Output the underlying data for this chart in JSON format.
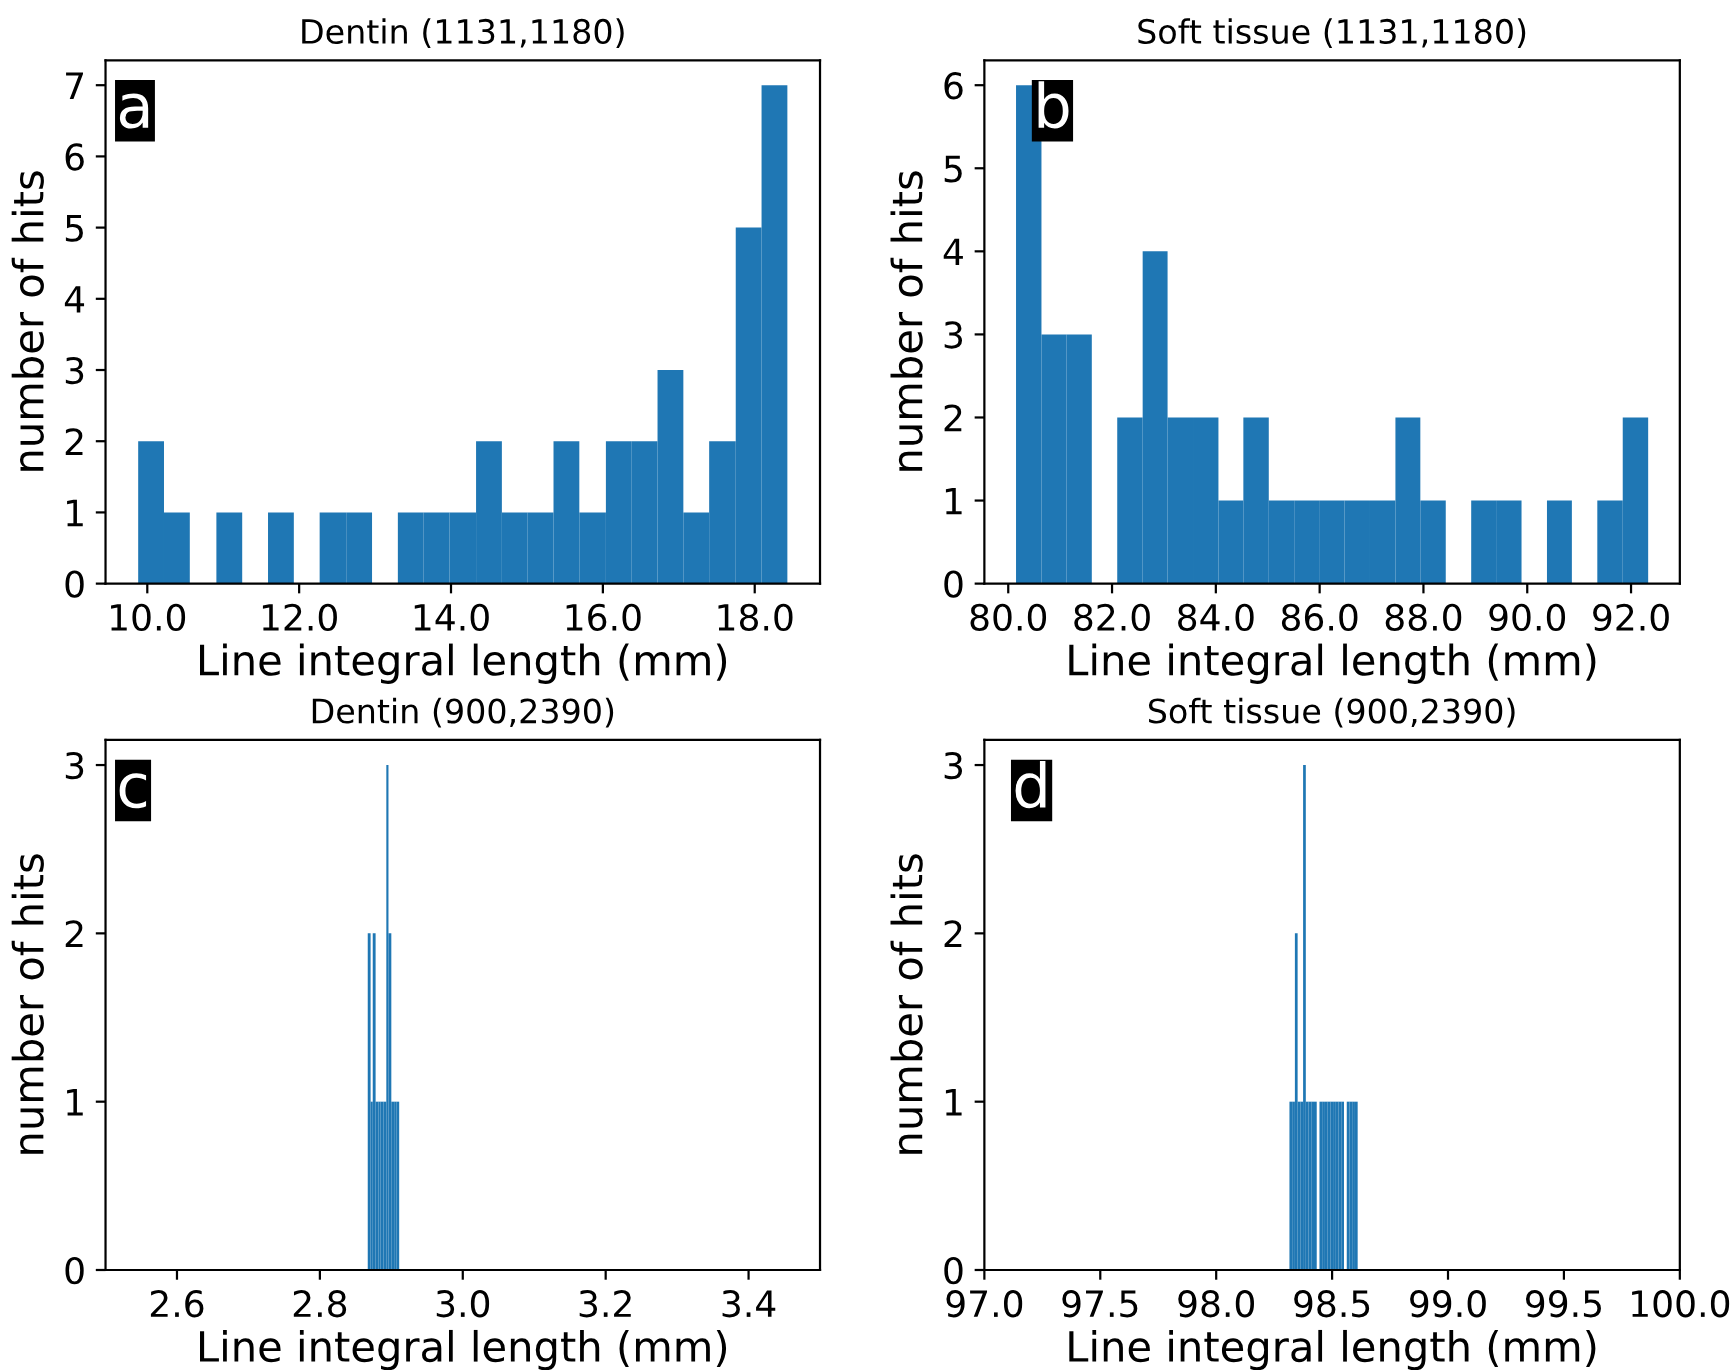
{
  "chart_data": [
    {
      "type": "histogram",
      "title": "Dentin (1131,1180)",
      "xlabel": "Line integral length (mm)",
      "ylabel": "number of hits",
      "color": "#1f77b4",
      "annotations": [
        "a"
      ],
      "bins": [
        9.88,
        10.22,
        10.56,
        10.91,
        11.25,
        11.59,
        11.93,
        12.27,
        12.62,
        12.96,
        13.3,
        13.64,
        13.98,
        14.33,
        14.67,
        15.01,
        15.35,
        15.69,
        16.04,
        16.38,
        16.72,
        17.06,
        17.4,
        17.75,
        18.09,
        18.43
      ],
      "values": [
        2,
        1,
        0,
        1,
        0,
        1,
        0,
        1,
        1,
        0,
        1,
        1,
        1,
        2,
        1,
        1,
        2,
        1,
        2,
        2,
        3,
        1,
        2,
        5,
        7
      ],
      "xlim": [
        9.45,
        18.86
      ],
      "xticks": [
        {
          "value": 10,
          "label": "10.0"
        },
        {
          "value": 12,
          "label": "12.0"
        },
        {
          "value": 14,
          "label": "14.0"
        },
        {
          "value": 16,
          "label": "16.0"
        },
        {
          "value": 18,
          "label": "18.0"
        }
      ],
      "ylim": [
        0,
        7.35
      ],
      "yticks": [
        0,
        1,
        2,
        3,
        4,
        5,
        6,
        7
      ],
      "grid": false
    },
    {
      "type": "histogram",
      "title": "Soft tissue (1131,1180)",
      "xlabel": "Line integral length (mm)",
      "ylabel": "number of hits",
      "color": "#1f77b4",
      "annotations": [
        "b"
      ],
      "bins": [
        80.15,
        80.64,
        81.12,
        81.61,
        82.1,
        82.59,
        83.07,
        83.56,
        84.05,
        84.53,
        85.02,
        85.51,
        85.99,
        86.48,
        86.97,
        87.46,
        87.94,
        88.43,
        88.92,
        89.4,
        89.89,
        90.38,
        90.86,
        91.35,
        91.84,
        92.33
      ],
      "values": [
        6,
        3,
        3,
        0,
        2,
        4,
        2,
        2,
        1,
        2,
        1,
        1,
        1,
        1,
        1,
        2,
        1,
        0,
        1,
        1,
        0,
        1,
        0,
        1,
        2
      ],
      "xlim": [
        79.54,
        92.94
      ],
      "xticks": [
        {
          "value": 80,
          "label": "80.0"
        },
        {
          "value": 82,
          "label": "82.0"
        },
        {
          "value": 84,
          "label": "84.0"
        },
        {
          "value": 86,
          "label": "86.0"
        },
        {
          "value": 88,
          "label": "88.0"
        },
        {
          "value": 90,
          "label": "90.0"
        },
        {
          "value": 92,
          "label": "92.0"
        }
      ],
      "ylim": [
        0,
        6.3
      ],
      "yticks": [
        0,
        1,
        2,
        3,
        4,
        5,
        6
      ],
      "grid": false
    },
    {
      "type": "histogram",
      "title": "Dentin (900,2390)",
      "xlabel": "Line integral length (mm)",
      "ylabel": "number of hits",
      "color": "#1f77b4",
      "annotations": [
        "c"
      ],
      "bins": [
        2.867,
        2.871,
        2.874,
        2.878,
        2.882,
        2.885,
        2.889,
        2.893,
        2.896,
        2.9,
        2.904,
        2.907,
        2.911
      ],
      "values": [
        2,
        1,
        2,
        1,
        1,
        1,
        1,
        3,
        2,
        1,
        1,
        1
      ],
      "xlim": [
        2.5,
        3.5
      ],
      "xticks": [
        {
          "value": 2.6,
          "label": "2.6"
        },
        {
          "value": 2.8,
          "label": "2.8"
        },
        {
          "value": 3.0,
          "label": "3.0"
        },
        {
          "value": 3.2,
          "label": "3.2"
        },
        {
          "value": 3.4,
          "label": "3.4"
        }
      ],
      "ylim": [
        0,
        3.15
      ],
      "yticks": [
        0,
        1,
        2,
        3
      ],
      "grid": false
    },
    {
      "type": "histogram",
      "title": "Soft tissue (900,2390)",
      "xlabel": "Line integral length (mm)",
      "ylabel": "number of hits",
      "color": "#1f77b4",
      "annotations": [
        "d"
      ],
      "bins": [
        98.316,
        98.3278,
        98.3395,
        98.3513,
        98.3631,
        98.3749,
        98.3866,
        98.3984,
        98.4102,
        98.4219,
        98.4337,
        98.4455,
        98.4572,
        98.469,
        98.4808,
        98.4926,
        98.5043,
        98.5161,
        98.5279,
        98.5396,
        98.5514,
        98.5632,
        98.5749,
        98.5867,
        98.5985,
        98.6103
      ],
      "values": [
        1,
        1,
        2,
        1,
        1,
        3,
        1,
        1,
        1,
        1,
        0,
        1,
        1,
        1,
        1,
        1,
        1,
        1,
        1,
        1,
        0,
        1,
        1,
        1,
        1
      ],
      "xlim": [
        97.0,
        100.0
      ],
      "xticks": [
        {
          "value": 97,
          "label": "97.0"
        },
        {
          "value": 97.5,
          "label": "97.5"
        },
        {
          "value": 98,
          "label": "98.0"
        },
        {
          "value": 98.5,
          "label": "98.5"
        },
        {
          "value": 99,
          "label": "99.0"
        },
        {
          "value": 99.5,
          "label": "99.5"
        },
        {
          "value": 100,
          "label": "100.0"
        }
      ],
      "ylim": [
        0,
        3.15
      ],
      "yticks": [
        0,
        1,
        2,
        3
      ],
      "grid": false
    }
  ]
}
